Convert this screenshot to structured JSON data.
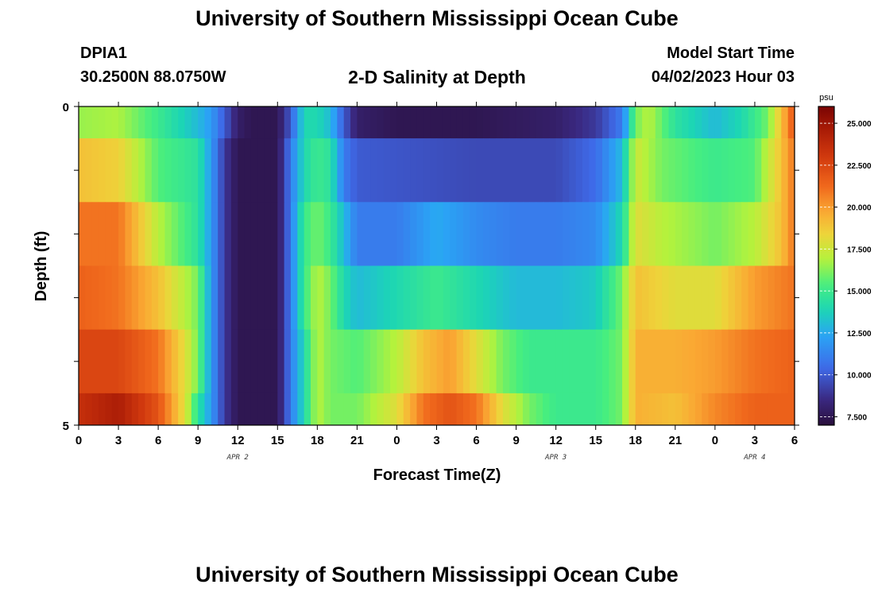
{
  "header": {
    "title": "University of Southern Mississippi Ocean Cube",
    "station_id": "DPIA1",
    "station_coords": "30.2500N  88.0750W",
    "chart_title": "2-D Salinity at Depth",
    "model_start_label": "Model Start Time",
    "model_start_value": "04/02/2023 Hour 03"
  },
  "footer": {
    "title": "University of Southern Mississippi Ocean Cube"
  },
  "chart_data": {
    "type": "heatmap",
    "title": "2-D Salinity at Depth",
    "xlabel": "Forecast Time(Z)",
    "ylabel": "Depth (ft)",
    "colorbar_unit": "psu",
    "x_range_hours": [
      0,
      54
    ],
    "y_range": [
      0,
      5
    ],
    "x_ticks": [
      {
        "hour": 0,
        "label": "0"
      },
      {
        "hour": 3,
        "label": "3"
      },
      {
        "hour": 6,
        "label": "6"
      },
      {
        "hour": 9,
        "label": "9"
      },
      {
        "hour": 12,
        "label": "12"
      },
      {
        "hour": 15,
        "label": "15"
      },
      {
        "hour": 18,
        "label": "18"
      },
      {
        "hour": 21,
        "label": "21"
      },
      {
        "hour": 24,
        "label": "0"
      },
      {
        "hour": 27,
        "label": "3"
      },
      {
        "hour": 30,
        "label": "6"
      },
      {
        "hour": 33,
        "label": "9"
      },
      {
        "hour": 36,
        "label": "12"
      },
      {
        "hour": 39,
        "label": "15"
      },
      {
        "hour": 42,
        "label": "18"
      },
      {
        "hour": 45,
        "label": "21"
      },
      {
        "hour": 48,
        "label": "0"
      },
      {
        "hour": 51,
        "label": "3"
      },
      {
        "hour": 54,
        "label": "6"
      }
    ],
    "date_labels": [
      {
        "hour": 12,
        "label": "APR 2"
      },
      {
        "hour": 36,
        "label": "APR 3"
      },
      {
        "hour": 51,
        "label": "APR 4"
      }
    ],
    "y_ticks": [
      {
        "value": 0,
        "label": "0"
      },
      {
        "value": 5,
        "label": "5"
      }
    ],
    "colorbar": {
      "range": [
        7,
        26
      ],
      "ticks": [
        7.5,
        10,
        12.5,
        15,
        17.5,
        20,
        22.5,
        25
      ],
      "tick_labels": [
        "7.500",
        "10.000",
        "12.500",
        "15.000",
        "17.500",
        "20.000",
        "22.500",
        "25.000"
      ]
    },
    "layers": [
      {
        "depth_range": [
          0,
          0.5
        ],
        "keys": [
          [
            0,
            16.5
          ],
          [
            3,
            16.8
          ],
          [
            6,
            15
          ],
          [
            9,
            13
          ],
          [
            10,
            12
          ],
          [
            11,
            10
          ],
          [
            12,
            8
          ],
          [
            13,
            7.5
          ],
          [
            15,
            7.5
          ],
          [
            16,
            10
          ],
          [
            17,
            14
          ],
          [
            18,
            14
          ],
          [
            19,
            13
          ],
          [
            20,
            10
          ],
          [
            21,
            8
          ],
          [
            24,
            7.5
          ],
          [
            30,
            7.5
          ],
          [
            36,
            8
          ],
          [
            39,
            9
          ],
          [
            41,
            11
          ],
          [
            42,
            16
          ],
          [
            43,
            17
          ],
          [
            45,
            14.5
          ],
          [
            48,
            13
          ],
          [
            50,
            14
          ],
          [
            52,
            16
          ],
          [
            53,
            19
          ],
          [
            54,
            22
          ]
        ]
      },
      {
        "depth_range": [
          0.5,
          1.5
        ],
        "keys": [
          [
            0,
            19
          ],
          [
            3,
            18.5
          ],
          [
            6,
            15.5
          ],
          [
            9,
            14.5
          ],
          [
            10,
            12
          ],
          [
            11,
            9
          ],
          [
            12,
            7.5
          ],
          [
            15,
            7.5
          ],
          [
            16,
            11
          ],
          [
            17,
            14
          ],
          [
            18,
            15
          ],
          [
            19,
            14.5
          ],
          [
            20,
            11
          ],
          [
            21,
            10
          ],
          [
            30,
            9.5
          ],
          [
            36,
            9.5
          ],
          [
            39,
            10.5
          ],
          [
            41,
            13
          ],
          [
            42,
            17.5
          ],
          [
            44,
            16
          ],
          [
            48,
            15
          ],
          [
            51,
            15.5
          ],
          [
            53,
            19
          ],
          [
            54,
            21
          ]
        ]
      },
      {
        "depth_range": [
          1.5,
          2.5
        ],
        "keys": [
          [
            0,
            21
          ],
          [
            3,
            21
          ],
          [
            6,
            17
          ],
          [
            9,
            14.5
          ],
          [
            10,
            12
          ],
          [
            11,
            9
          ],
          [
            12,
            7.5
          ],
          [
            15,
            7.5
          ],
          [
            16,
            11
          ],
          [
            17,
            15
          ],
          [
            18,
            16
          ],
          [
            19,
            15
          ],
          [
            20,
            13
          ],
          [
            21,
            11
          ],
          [
            24,
            11
          ],
          [
            27,
            12.5
          ],
          [
            30,
            11.5
          ],
          [
            33,
            11
          ],
          [
            36,
            11
          ],
          [
            39,
            11.5
          ],
          [
            41,
            14
          ],
          [
            42,
            18
          ],
          [
            44,
            17
          ],
          [
            48,
            16
          ],
          [
            51,
            17
          ],
          [
            53,
            19
          ],
          [
            54,
            21
          ]
        ]
      },
      {
        "depth_range": [
          2.5,
          3.5
        ],
        "keys": [
          [
            0,
            21.5
          ],
          [
            3,
            21
          ],
          [
            6,
            19
          ],
          [
            9,
            16
          ],
          [
            10,
            12
          ],
          [
            11,
            9
          ],
          [
            12,
            7.5
          ],
          [
            15,
            7.5
          ],
          [
            16,
            11
          ],
          [
            17,
            15
          ],
          [
            18,
            17
          ],
          [
            19,
            16
          ],
          [
            20,
            14
          ],
          [
            21,
            13
          ],
          [
            24,
            14
          ],
          [
            27,
            15
          ],
          [
            30,
            14
          ],
          [
            33,
            13
          ],
          [
            36,
            13
          ],
          [
            39,
            13.5
          ],
          [
            41,
            16
          ],
          [
            42,
            19
          ],
          [
            45,
            18
          ],
          [
            48,
            18
          ],
          [
            51,
            20
          ],
          [
            54,
            21
          ]
        ]
      },
      {
        "depth_range": [
          3.5,
          4.5
        ],
        "keys": [
          [
            0,
            22.5
          ],
          [
            3,
            22.5
          ],
          [
            6,
            21
          ],
          [
            8,
            18
          ],
          [
            9,
            16
          ],
          [
            10,
            12
          ],
          [
            11,
            9
          ],
          [
            12,
            7.5
          ],
          [
            15,
            7.5
          ],
          [
            16,
            11
          ],
          [
            17,
            14
          ],
          [
            18,
            17
          ],
          [
            19,
            16
          ],
          [
            21,
            15.5
          ],
          [
            24,
            17
          ],
          [
            26,
            19
          ],
          [
            28,
            20
          ],
          [
            30,
            18
          ],
          [
            32,
            16
          ],
          [
            34,
            15
          ],
          [
            36,
            15
          ],
          [
            39,
            15
          ],
          [
            41,
            16
          ],
          [
            42,
            19.5
          ],
          [
            45,
            19.5
          ],
          [
            48,
            20
          ],
          [
            51,
            21
          ],
          [
            54,
            21.5
          ]
        ]
      },
      {
        "depth_range": [
          4.5,
          5
        ],
        "keys": [
          [
            0,
            23.5
          ],
          [
            3,
            24.5
          ],
          [
            6,
            22
          ],
          [
            8,
            18
          ],
          [
            9,
            14.5
          ],
          [
            10,
            12
          ],
          [
            11,
            9
          ],
          [
            12,
            7.5
          ],
          [
            15,
            7.5
          ],
          [
            16,
            11
          ],
          [
            17,
            14
          ],
          [
            18,
            17
          ],
          [
            19,
            16
          ],
          [
            21,
            16
          ],
          [
            24,
            18
          ],
          [
            26,
            21
          ],
          [
            28,
            22
          ],
          [
            30,
            21
          ],
          [
            32,
            18
          ],
          [
            34,
            16
          ],
          [
            36,
            15
          ],
          [
            39,
            15
          ],
          [
            41,
            16
          ],
          [
            42,
            19.5
          ],
          [
            45,
            19
          ],
          [
            48,
            20.5
          ],
          [
            51,
            21.5
          ],
          [
            54,
            21.5
          ]
        ]
      }
    ]
  }
}
